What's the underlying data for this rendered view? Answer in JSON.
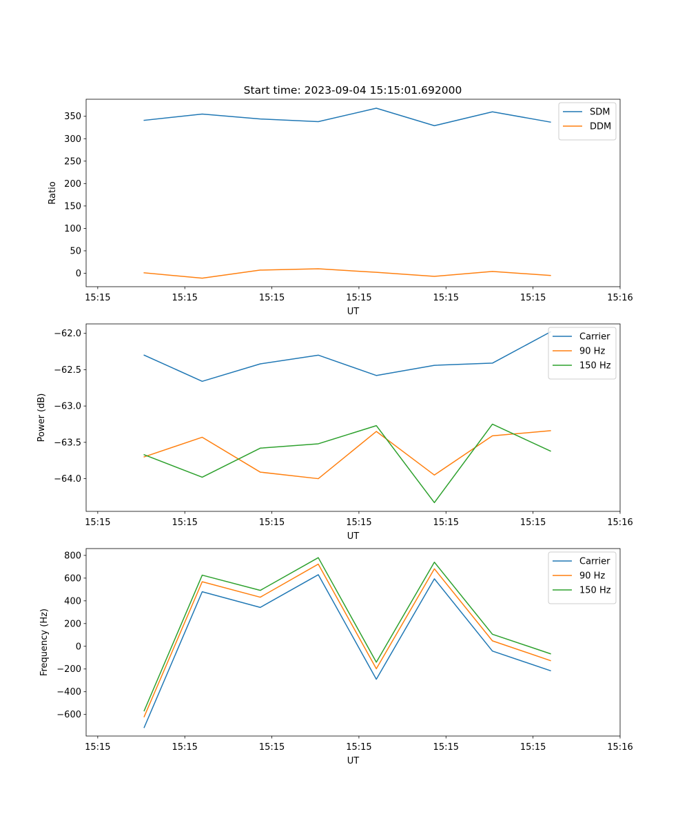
{
  "figure_title": "Start time: 2023-09-04 15:15:01.692000",
  "chart_data": [
    {
      "type": "line",
      "title": "Start time: 2023-09-04 15:15:01.692000",
      "xlabel": "UT",
      "ylabel": "Ratio",
      "x": [
        1,
        2,
        3,
        4,
        5,
        6,
        7,
        8
      ],
      "xlim": [
        0,
        9.2
      ],
      "ylim": [
        -30,
        388
      ],
      "yticks": [
        0,
        50,
        100,
        150,
        200,
        250,
        300,
        350
      ],
      "xticks": [
        0.2,
        1.7,
        3.2,
        4.7,
        6.2,
        7.7,
        9.2
      ],
      "xtick_labels": [
        "15:15",
        "15:15",
        "15:15",
        "15:15",
        "15:15",
        "15:15",
        "15:16"
      ],
      "legend_position": "top-right",
      "series": [
        {
          "name": "SDM",
          "color": "#1f77b4",
          "values": [
            341,
            355,
            344,
            338,
            368,
            329,
            360,
            337
          ]
        },
        {
          "name": "DDM",
          "color": "#ff7f0e",
          "values": [
            1,
            -11,
            7,
            10,
            2,
            -7,
            4,
            -5
          ]
        }
      ]
    },
    {
      "type": "line",
      "title": "",
      "xlabel": "UT",
      "ylabel": "Power (dB)",
      "x": [
        1,
        2,
        3,
        4,
        5,
        6,
        7,
        8
      ],
      "xlim": [
        0,
        9.2
      ],
      "ylim": [
        -64.45,
        -61.87
      ],
      "yticks": [
        -64.0,
        -63.5,
        -63.0,
        -62.5,
        -62.0
      ],
      "ytick_labels": [
        "−64.0",
        "−63.5",
        "−63.0",
        "−62.5",
        "−62.0"
      ],
      "xticks": [
        0.2,
        1.7,
        3.2,
        4.7,
        6.2,
        7.7,
        9.2
      ],
      "xtick_labels": [
        "15:15",
        "15:15",
        "15:15",
        "15:15",
        "15:15",
        "15:15",
        "15:16"
      ],
      "legend_position": "top-right",
      "series": [
        {
          "name": "Carrier",
          "color": "#1f77b4",
          "values": [
            -62.3,
            -62.66,
            -62.42,
            -62.3,
            -62.58,
            -62.44,
            -62.41,
            -61.98
          ]
        },
        {
          "name": "90 Hz",
          "color": "#ff7f0e",
          "values": [
            -63.7,
            -63.43,
            -63.91,
            -64.0,
            -63.35,
            -63.95,
            -63.41,
            -63.34
          ]
        },
        {
          "name": "150 Hz",
          "color": "#2ca02c",
          "values": [
            -63.67,
            -63.98,
            -63.58,
            -63.52,
            -63.27,
            -64.33,
            -63.25,
            -63.62
          ]
        }
      ]
    },
    {
      "type": "line",
      "title": "",
      "xlabel": "UT",
      "ylabel": "Frequency (Hz)",
      "x": [
        1,
        2,
        3,
        4,
        5,
        6,
        7,
        8
      ],
      "xlim": [
        0,
        9.2
      ],
      "ylim": [
        -790,
        860
      ],
      "yticks": [
        -600,
        -400,
        -200,
        0,
        200,
        400,
        600,
        800
      ],
      "ytick_labels": [
        "−600",
        "−400",
        "−200",
        "0",
        "200",
        "400",
        "600",
        "800"
      ],
      "xticks": [
        0.2,
        1.7,
        3.2,
        4.7,
        6.2,
        7.7,
        9.2
      ],
      "xtick_labels": [
        "15:15",
        "15:15",
        "15:15",
        "15:15",
        "15:15",
        "15:15",
        "15:16"
      ],
      "legend_position": "top-right",
      "series": [
        {
          "name": "Carrier",
          "color": "#1f77b4",
          "values": [
            -715,
            480,
            342,
            630,
            -290,
            594,
            -42,
            -215
          ]
        },
        {
          "name": "90 Hz",
          "color": "#ff7f0e",
          "values": [
            -620,
            568,
            432,
            723,
            -198,
            682,
            48,
            -126
          ]
        },
        {
          "name": "150 Hz",
          "color": "#2ca02c",
          "values": [
            -568,
            626,
            492,
            780,
            -140,
            740,
            106,
            -66
          ]
        }
      ]
    }
  ]
}
